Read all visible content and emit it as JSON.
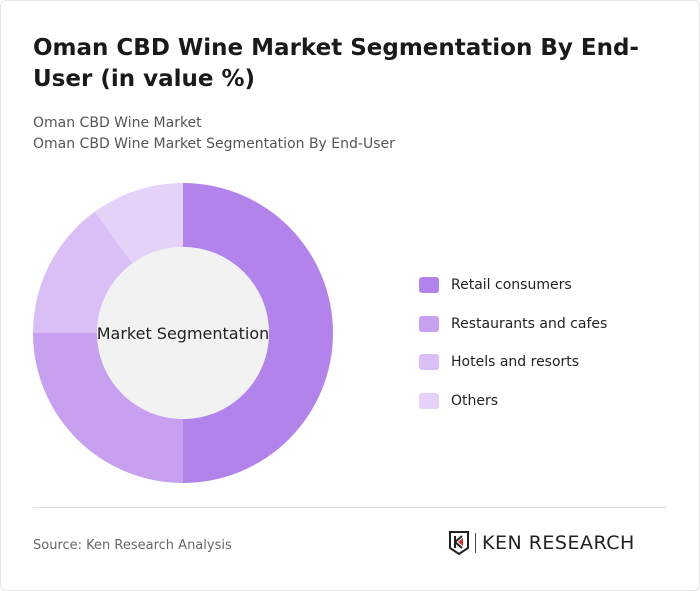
{
  "title": "Oman CBD Wine Market Segmentation By End-User (in value %)",
  "subtitle1": "Oman CBD Wine Market",
  "subtitle2": "Oman CBD Wine Market Segmentation By End-User",
  "source": "Source: Ken Research Analysis",
  "logo_text": "KEN RESEARCH",
  "chart_data": {
    "type": "pie",
    "variant": "donut",
    "center_label": "Market Segmentation",
    "legend_position": "right",
    "categories": [
      "Retail consumers",
      "Restaurants and cafes",
      "Hotels and resorts",
      "Others"
    ],
    "values": [
      50,
      25,
      15,
      10
    ],
    "colors": [
      "#b383ec",
      "#c7a0f0",
      "#d9bff5",
      "#e4d2f8"
    ]
  }
}
